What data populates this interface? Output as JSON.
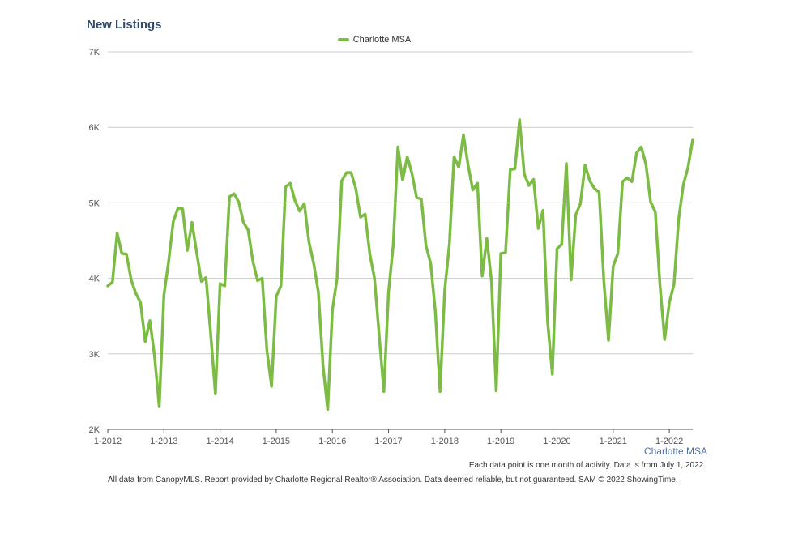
{
  "title": "New Listings",
  "series_caption": "Charlotte MSA",
  "note_interval": "Each data point is one month of activity. Data is from July 1, 2022.",
  "note_source": "All data from CanopyMLS. Report provided by Charlotte Regional Realtor® Association. Data deemed reliable, but not guaranteed. SAM © 2022 ShowingTime.",
  "colors": {
    "series": "#7cbb44",
    "grid": "#cccccc",
    "axis": "#555555"
  },
  "chart_data": {
    "type": "line",
    "x_start": "2012-01",
    "x_end": "2022-06",
    "x_ticks": [
      "1-2012",
      "1-2013",
      "1-2014",
      "1-2015",
      "1-2016",
      "1-2017",
      "1-2018",
      "1-2019",
      "1-2020",
      "1-2021",
      "1-2022"
    ],
    "y_ticks": [
      "2K",
      "3K",
      "4K",
      "5K",
      "6K",
      "7K"
    ],
    "ylim": [
      2000,
      7000
    ],
    "grid": true,
    "legend_position": "top-center",
    "series": [
      {
        "name": "Charlotte MSA",
        "values": [
          3900,
          3950,
          4600,
          4330,
          4320,
          3980,
          3800,
          3680,
          3160,
          3440,
          2970,
          2300,
          3780,
          4220,
          4750,
          4930,
          4920,
          4370,
          4740,
          4340,
          3960,
          4010,
          3260,
          2470,
          3930,
          3900,
          5080,
          5120,
          5010,
          4740,
          4640,
          4230,
          3970,
          4000,
          3050,
          2570,
          3760,
          3900,
          5210,
          5260,
          5030,
          4890,
          4990,
          4480,
          4200,
          3820,
          2840,
          2260,
          3580,
          4000,
          5290,
          5400,
          5400,
          5190,
          4810,
          4850,
          4320,
          4000,
          3240,
          2500,
          3820,
          4440,
          5740,
          5300,
          5610,
          5390,
          5070,
          5050,
          4430,
          4200,
          3560,
          2500,
          3840,
          4450,
          5610,
          5470,
          5900,
          5500,
          5170,
          5260,
          4030,
          4530,
          3960,
          2510,
          4330,
          4340,
          5440,
          5450,
          6100,
          5380,
          5230,
          5310,
          4660,
          4900,
          3420,
          2730,
          4390,
          4450,
          5520,
          3980,
          4840,
          4990,
          5500,
          5290,
          5190,
          5140,
          3970,
          3180,
          4160,
          4330,
          5280,
          5330,
          5280,
          5660,
          5740,
          5510,
          5010,
          4880,
          3910,
          3190,
          3680,
          3920,
          4790,
          5240,
          5470,
          5840
        ]
      }
    ]
  }
}
